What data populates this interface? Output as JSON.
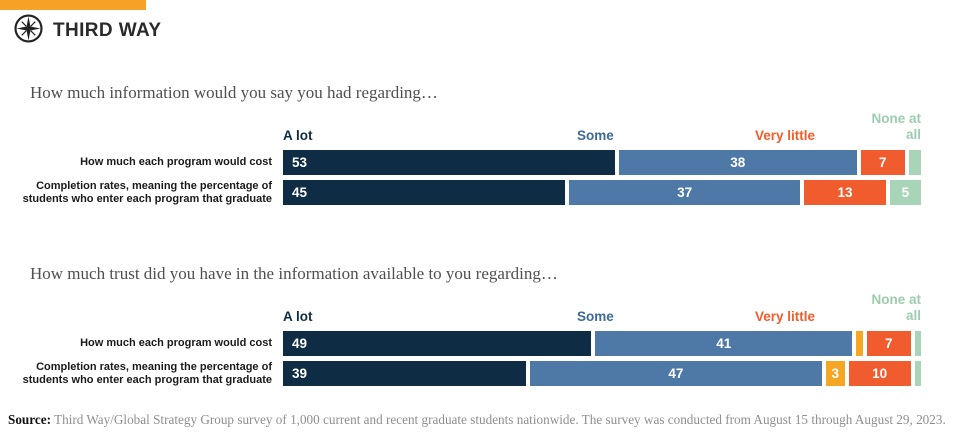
{
  "brand": {
    "logo_text": "THIRD WAY",
    "accent_bar_color": "#F5A227"
  },
  "chart_data": [
    {
      "type": "bar",
      "variant": "horizontal-stacked",
      "title": "How much information would you say you had regarding…",
      "xlim": [
        0,
        100
      ],
      "grid": false,
      "legend_position": "top",
      "legend": [
        {
          "key": "a-lot",
          "label": "A lot",
          "color": "#0E2C44"
        },
        {
          "key": "some",
          "label": "Some",
          "color": "#3D6A99"
        },
        {
          "key": "very-little",
          "label": "Very little",
          "color": "#F05C2E"
        },
        {
          "key": "none-at-all",
          "label": "None at all",
          "color": "#9CCDAD"
        }
      ],
      "rows": [
        {
          "category": "How much each program would cost",
          "segments": [
            {
              "series": "A lot",
              "value": 53,
              "color": "#0E2C44",
              "value_shown": true
            },
            {
              "series": "Some",
              "value": 38,
              "color": "#4E79A7",
              "value_shown": true
            },
            {
              "series": "Very little",
              "value": 7,
              "color": "#F05C2E",
              "value_shown": true
            },
            {
              "series": "None at all",
              "value": 2,
              "color": "#A8D5B8",
              "value_shown": false
            }
          ]
        },
        {
          "category": "Completion rates, meaning the percentage of students who enter each program that graduate",
          "segments": [
            {
              "series": "A lot",
              "value": 45,
              "color": "#0E2C44",
              "value_shown": true
            },
            {
              "series": "Some",
              "value": 37,
              "color": "#4E79A7",
              "value_shown": true
            },
            {
              "series": "Very little",
              "value": 13,
              "color": "#F05C2E",
              "value_shown": true
            },
            {
              "series": "None at all",
              "value": 5,
              "color": "#A8D5B8",
              "value_shown": true
            }
          ]
        }
      ]
    },
    {
      "type": "bar",
      "variant": "horizontal-stacked",
      "title": "How much trust did you have in the information available to you regarding…",
      "xlim": [
        0,
        100
      ],
      "grid": false,
      "legend_position": "top",
      "legend": [
        {
          "key": "a-lot",
          "label": "A lot",
          "color": "#0E2C44"
        },
        {
          "key": "some",
          "label": "Some",
          "color": "#3D6A99"
        },
        {
          "key": "very-little",
          "label": "Very little",
          "color": "#F05C2E"
        },
        {
          "key": "none-at-all",
          "label": "None at all",
          "color": "#9CCDAD"
        }
      ],
      "rows": [
        {
          "category": "How much each program would cost",
          "segments": [
            {
              "series": "A lot",
              "value": 49,
              "color": "#0E2C44",
              "value_shown": true
            },
            {
              "series": "Some",
              "value": 41,
              "color": "#4E79A7",
              "value_shown": true
            },
            {
              "series": "unlabeled",
              "value": 1,
              "color": "#F5A623",
              "value_shown": false
            },
            {
              "series": "Very little",
              "value": 7,
              "color": "#F05C2E",
              "value_shown": true
            },
            {
              "series": "None at all",
              "value": 1,
              "color": "#A8D5B8",
              "value_shown": false
            }
          ]
        },
        {
          "category": "Completion rates, meaning the percentage of students who enter each program that graduate",
          "segments": [
            {
              "series": "A lot",
              "value": 39,
              "color": "#0E2C44",
              "value_shown": true
            },
            {
              "series": "Some",
              "value": 47,
              "color": "#4E79A7",
              "value_shown": true
            },
            {
              "series": "unlabeled",
              "value": 3,
              "color": "#F5A623",
              "value_shown": true
            },
            {
              "series": "Very little",
              "value": 10,
              "color": "#F05C2E",
              "value_shown": true
            },
            {
              "series": "None at all",
              "value": 1,
              "color": "#A8D5B8",
              "value_shown": false
            }
          ]
        }
      ]
    }
  ],
  "source": {
    "label": "Source:",
    "text": " Third Way/Global Strategy Group survey of 1,000 current and recent graduate students nationwide. The survey was conducted from August 15 through August 29, 2023."
  }
}
